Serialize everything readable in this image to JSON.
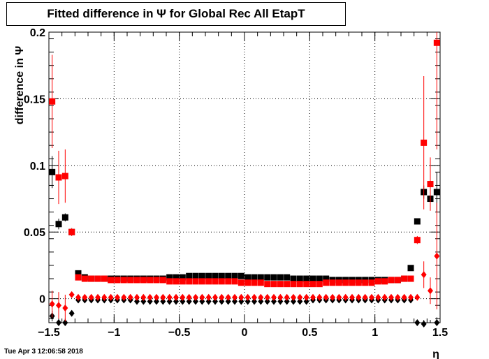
{
  "title": "Fitted difference in  Ψ  for Global Rec All EtapT",
  "timestamp": "Tue Apr  3 12:06:58 2018",
  "chart_data": {
    "type": "scatter",
    "xlabel": "η",
    "ylabel": "difference in  Ψ",
    "xlim": [
      -1.5,
      1.5
    ],
    "ylim": [
      -0.018,
      0.2
    ],
    "xticks": [
      "−1.5",
      "−1",
      "−0.5",
      "0",
      "0.5",
      "1",
      "1.5"
    ],
    "yticks": [
      "0",
      "0.05",
      "0.1",
      "0.15",
      "0.2"
    ],
    "grid": true,
    "series": [
      {
        "marker": "square",
        "color": "#000000",
        "x": [
          -1.475,
          -1.425,
          -1.375,
          -1.325,
          -1.275,
          -1.225,
          -1.175,
          -1.125,
          -1.075,
          -1.025,
          -0.975,
          -0.925,
          -0.875,
          -0.825,
          -0.775,
          -0.725,
          -0.675,
          -0.625,
          -0.575,
          -0.525,
          -0.475,
          -0.425,
          -0.375,
          -0.325,
          -0.275,
          -0.225,
          -0.175,
          -0.125,
          -0.075,
          -0.025,
          0.025,
          0.075,
          0.125,
          0.175,
          0.225,
          0.275,
          0.325,
          0.375,
          0.425,
          0.475,
          0.525,
          0.575,
          0.625,
          0.675,
          0.725,
          0.775,
          0.825,
          0.875,
          0.925,
          0.975,
          1.025,
          1.075,
          1.125,
          1.175,
          1.225,
          1.275,
          1.325,
          1.375,
          1.425,
          1.475
        ],
        "y": [
          0.095,
          0.056,
          0.061,
          0.05,
          0.019,
          0.016,
          0.015,
          0.015,
          0.015,
          0.015,
          0.015,
          0.015,
          0.015,
          0.015,
          0.015,
          0.015,
          0.015,
          0.015,
          0.016,
          0.016,
          0.016,
          0.017,
          0.017,
          0.017,
          0.017,
          0.017,
          0.017,
          0.017,
          0.017,
          0.017,
          0.016,
          0.016,
          0.016,
          0.016,
          0.016,
          0.016,
          0.016,
          0.015,
          0.015,
          0.015,
          0.015,
          0.015,
          0.015,
          0.014,
          0.014,
          0.014,
          0.014,
          0.014,
          0.014,
          0.014,
          0.014,
          0.014,
          0.014,
          0.014,
          0.015,
          0.023,
          0.058,
          0.08,
          0.075,
          0.08
        ],
        "yerr": [
          0.012,
          0.004,
          0.003,
          0.002,
          0.001,
          0.001,
          0,
          0,
          0,
          0,
          0,
          0,
          0,
          0,
          0,
          0,
          0,
          0,
          0,
          0,
          0,
          0,
          0,
          0,
          0,
          0,
          0,
          0,
          0,
          0,
          0,
          0,
          0,
          0,
          0,
          0,
          0,
          0,
          0,
          0,
          0,
          0,
          0,
          0,
          0,
          0,
          0,
          0,
          0,
          0,
          0,
          0,
          0,
          0,
          0,
          0.002,
          0.002,
          0.005,
          0.008,
          0.015
        ]
      },
      {
        "marker": "square",
        "color": "#ff0000",
        "x": [
          -1.475,
          -1.425,
          -1.375,
          -1.325,
          -1.275,
          -1.225,
          -1.175,
          -1.125,
          -1.075,
          -1.025,
          -0.975,
          -0.925,
          -0.875,
          -0.825,
          -0.775,
          -0.725,
          -0.675,
          -0.625,
          -0.575,
          -0.525,
          -0.475,
          -0.425,
          -0.375,
          -0.325,
          -0.275,
          -0.225,
          -0.175,
          -0.125,
          -0.075,
          -0.025,
          0.025,
          0.075,
          0.125,
          0.175,
          0.225,
          0.275,
          0.325,
          0.375,
          0.425,
          0.475,
          0.525,
          0.575,
          0.625,
          0.675,
          0.725,
          0.775,
          0.825,
          0.875,
          0.925,
          0.975,
          1.025,
          1.075,
          1.125,
          1.175,
          1.225,
          1.275,
          1.325,
          1.375,
          1.425,
          1.475
        ],
        "y": [
          0.148,
          0.091,
          0.092,
          0.05,
          0.016,
          0.015,
          0.015,
          0.015,
          0.015,
          0.014,
          0.014,
          0.014,
          0.014,
          0.014,
          0.014,
          0.014,
          0.014,
          0.014,
          0.013,
          0.013,
          0.013,
          0.013,
          0.013,
          0.013,
          0.013,
          0.013,
          0.013,
          0.013,
          0.013,
          0.012,
          0.012,
          0.012,
          0.012,
          0.011,
          0.011,
          0.011,
          0.011,
          0.011,
          0.011,
          0.011,
          0.011,
          0.011,
          0.012,
          0.012,
          0.012,
          0.012,
          0.012,
          0.012,
          0.012,
          0.012,
          0.013,
          0.013,
          0.014,
          0.014,
          0.015,
          0.015,
          0.044,
          0.117,
          0.086,
          0.192
        ],
        "yerr": [
          0.035,
          0.02,
          0.02,
          0.003,
          0.001,
          0.001,
          0,
          0,
          0,
          0,
          0,
          0,
          0,
          0,
          0,
          0,
          0,
          0,
          0,
          0,
          0,
          0,
          0,
          0,
          0,
          0,
          0,
          0,
          0,
          0,
          0,
          0,
          0,
          0,
          0,
          0,
          0,
          0,
          0,
          0,
          0,
          0,
          0,
          0,
          0,
          0,
          0,
          0,
          0,
          0,
          0,
          0,
          0,
          0,
          0,
          0.001,
          0.003,
          0.05,
          0.02,
          0.08
        ]
      },
      {
        "marker": "diamond",
        "color": "#000000",
        "x": [
          -1.475,
          -1.425,
          -1.375,
          -1.325,
          -1.275,
          -1.225,
          -1.175,
          -1.125,
          -1.075,
          -1.025,
          -0.975,
          -0.925,
          -0.875,
          -0.825,
          -0.775,
          -0.725,
          -0.675,
          -0.625,
          -0.575,
          -0.525,
          -0.475,
          -0.425,
          -0.375,
          -0.325,
          -0.275,
          -0.225,
          -0.175,
          -0.125,
          -0.075,
          -0.025,
          0.025,
          0.075,
          0.125,
          0.175,
          0.225,
          0.275,
          0.325,
          0.375,
          0.425,
          0.475,
          0.525,
          0.575,
          0.625,
          0.675,
          0.725,
          0.775,
          0.825,
          0.875,
          0.925,
          0.975,
          1.025,
          1.075,
          1.125,
          1.175,
          1.225,
          1.275,
          1.325,
          1.375,
          1.425,
          1.475
        ],
        "y": [
          -0.013,
          -0.018,
          -0.018,
          -0.011,
          -0.001,
          -0.001,
          -0.001,
          -0.001,
          -0.001,
          -0.001,
          -0.001,
          -0.001,
          -0.001,
          -0.002,
          -0.002,
          -0.002,
          -0.002,
          -0.002,
          -0.002,
          -0.002,
          -0.002,
          -0.002,
          -0.002,
          -0.002,
          -0.002,
          -0.002,
          -0.002,
          -0.002,
          -0.002,
          -0.002,
          -0.002,
          -0.002,
          -0.002,
          -0.002,
          -0.002,
          -0.002,
          -0.002,
          -0.002,
          -0.002,
          -0.002,
          -0.001,
          -0.001,
          -0.001,
          -0.001,
          -0.001,
          -0.001,
          -0.001,
          -0.001,
          -0.001,
          -0.001,
          -0.001,
          -0.001,
          -0.001,
          -0.001,
          -0.001,
          -0.001,
          -0.018,
          -0.019,
          -0.02,
          -0.018
        ],
        "yerr": [
          0.004,
          0.004,
          0.003,
          0.002,
          0,
          0,
          0,
          0,
          0,
          0,
          0,
          0,
          0,
          0,
          0,
          0,
          0,
          0,
          0,
          0,
          0,
          0,
          0,
          0,
          0,
          0,
          0,
          0,
          0,
          0,
          0,
          0,
          0,
          0,
          0,
          0,
          0,
          0,
          0,
          0,
          0,
          0,
          0,
          0,
          0,
          0,
          0,
          0,
          0,
          0,
          0,
          0,
          0,
          0,
          0,
          0,
          0.002,
          0.003,
          0.004,
          0.004
        ]
      },
      {
        "marker": "diamond",
        "color": "#ff0000",
        "x": [
          -1.475,
          -1.425,
          -1.375,
          -1.325,
          -1.275,
          -1.225,
          -1.175,
          -1.125,
          -1.075,
          -1.025,
          -0.975,
          -0.925,
          -0.875,
          -0.825,
          -0.775,
          -0.725,
          -0.675,
          -0.625,
          -0.575,
          -0.525,
          -0.475,
          -0.425,
          -0.375,
          -0.325,
          -0.275,
          -0.225,
          -0.175,
          -0.125,
          -0.075,
          -0.025,
          0.025,
          0.075,
          0.125,
          0.175,
          0.225,
          0.275,
          0.325,
          0.375,
          0.425,
          0.475,
          0.525,
          0.575,
          0.625,
          0.675,
          0.725,
          0.775,
          0.825,
          0.875,
          0.925,
          0.975,
          1.025,
          1.075,
          1.125,
          1.175,
          1.225,
          1.275,
          1.325,
          1.375,
          1.425,
          1.475
        ],
        "y": [
          -0.004,
          -0.005,
          -0.007,
          0.003,
          0.001,
          0.001,
          0.001,
          0.001,
          0.001,
          0.001,
          0.001,
          0.001,
          0.001,
          0.001,
          0.001,
          0.001,
          0.001,
          0.001,
          0.001,
          0.001,
          0.001,
          0.001,
          0.001,
          0.001,
          0.001,
          0.001,
          0.001,
          0.001,
          0.001,
          0.001,
          0.001,
          0.001,
          0.001,
          0.001,
          0.001,
          0.001,
          0.001,
          0.001,
          0.001,
          0.001,
          0.001,
          0.001,
          0.001,
          0.001,
          0.001,
          0.001,
          0.001,
          0.001,
          0.001,
          0.001,
          0.001,
          0.001,
          0.001,
          0.001,
          0.001,
          0.001,
          0.001,
          0.018,
          0.006,
          0.032
        ],
        "yerr": [
          0.01,
          0.01,
          0.01,
          0.002,
          0,
          0,
          0,
          0,
          0,
          0,
          0,
          0,
          0,
          0,
          0,
          0,
          0,
          0,
          0,
          0,
          0,
          0,
          0,
          0,
          0,
          0,
          0,
          0,
          0,
          0,
          0,
          0,
          0,
          0,
          0,
          0,
          0,
          0,
          0,
          0,
          0,
          0,
          0,
          0,
          0,
          0,
          0,
          0,
          0,
          0,
          0,
          0,
          0,
          0,
          0,
          0,
          0.001,
          0.01,
          0.01,
          0.04
        ]
      }
    ]
  }
}
